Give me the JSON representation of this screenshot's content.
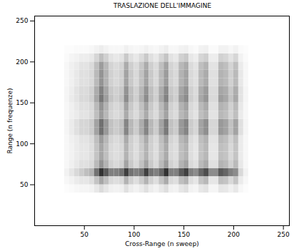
{
  "chart_data": {
    "type": "heatmap",
    "title": "TRASLAZIONE DELL'IMMAGINE",
    "x_label": "Cross-Range (n sweep)",
    "y_label": "Range (n frequenze)",
    "xlim": [
      0,
      256
    ],
    "ylim": [
      0,
      256
    ],
    "xticks": [
      50,
      100,
      150,
      200,
      250
    ],
    "yticks": [
      50,
      100,
      150,
      200,
      250
    ],
    "color": "#000000",
    "zlim": [
      0,
      100
    ],
    "xbins": [
      30,
      35,
      40,
      45,
      50,
      55,
      60,
      65,
      70,
      75,
      80,
      85,
      90,
      95,
      100,
      105,
      110,
      115,
      120,
      125,
      130,
      135,
      140,
      145,
      150,
      155,
      160,
      165,
      170,
      175,
      180,
      185,
      190,
      195,
      200,
      205,
      210,
      215
    ],
    "ybins": [
      40,
      50,
      60,
      70,
      80,
      90,
      100,
      110,
      120,
      130,
      140,
      150,
      160,
      170,
      180,
      190,
      200,
      210,
      220
    ],
    "values": [
      [
        1,
        2,
        3,
        4,
        4,
        5,
        9,
        14,
        10,
        6,
        5,
        6,
        12,
        7,
        5,
        8,
        12,
        7,
        5,
        9,
        13,
        6,
        5,
        10,
        12,
        5,
        4,
        9,
        11,
        4,
        4,
        10,
        9,
        6,
        9,
        3,
        1
      ],
      [
        3,
        5,
        8,
        10,
        10,
        13,
        23,
        35,
        25,
        15,
        13,
        15,
        30,
        18,
        13,
        20,
        30,
        18,
        13,
        23,
        33,
        15,
        13,
        25,
        30,
        13,
        10,
        23,
        28,
        10,
        10,
        25,
        23,
        15,
        23,
        8,
        3
      ],
      [
        5,
        10,
        15,
        20,
        25,
        30,
        55,
        80,
        65,
        50,
        50,
        55,
        75,
        55,
        50,
        55,
        75,
        55,
        50,
        60,
        80,
        50,
        50,
        65,
        75,
        50,
        45,
        60,
        70,
        45,
        45,
        65,
        60,
        50,
        45,
        15,
        5
      ],
      [
        3,
        6,
        9,
        12,
        12,
        15,
        27,
        42,
        30,
        18,
        15,
        18,
        36,
        21,
        15,
        24,
        36,
        21,
        15,
        27,
        39,
        18,
        15,
        30,
        36,
        15,
        12,
        27,
        33,
        12,
        12,
        30,
        27,
        18,
        27,
        9,
        3
      ],
      [
        3,
        5,
        8,
        10,
        10,
        13,
        23,
        35,
        25,
        15,
        13,
        15,
        30,
        18,
        13,
        20,
        30,
        18,
        13,
        23,
        33,
        15,
        13,
        25,
        30,
        13,
        10,
        23,
        28,
        10,
        10,
        25,
        23,
        15,
        23,
        8,
        3
      ],
      [
        3,
        5,
        8,
        10,
        10,
        13,
        23,
        35,
        25,
        15,
        13,
        15,
        30,
        18,
        13,
        20,
        30,
        18,
        13,
        23,
        33,
        15,
        13,
        25,
        30,
        13,
        10,
        23,
        28,
        10,
        10,
        25,
        23,
        15,
        23,
        8,
        3
      ],
      [
        3,
        6,
        8,
        11,
        11,
        14,
        25,
        39,
        28,
        17,
        14,
        17,
        33,
        19,
        14,
        22,
        33,
        19,
        14,
        25,
        36,
        17,
        14,
        28,
        33,
        14,
        11,
        25,
        30,
        11,
        11,
        28,
        25,
        17,
        25,
        8,
        3
      ],
      [
        4,
        8,
        12,
        16,
        16,
        20,
        36,
        56,
        40,
        24,
        20,
        24,
        48,
        28,
        20,
        32,
        48,
        28,
        20,
        36,
        52,
        24,
        20,
        40,
        48,
        20,
        16,
        36,
        44,
        16,
        16,
        40,
        36,
        24,
        36,
        12,
        4
      ],
      [
        4,
        8,
        12,
        16,
        16,
        20,
        36,
        56,
        40,
        24,
        20,
        24,
        48,
        28,
        20,
        32,
        48,
        28,
        20,
        36,
        52,
        24,
        20,
        40,
        48,
        20,
        16,
        36,
        44,
        16,
        16,
        40,
        36,
        24,
        36,
        12,
        4
      ],
      [
        3,
        6,
        8,
        11,
        11,
        14,
        25,
        39,
        28,
        17,
        14,
        17,
        33,
        19,
        14,
        22,
        33,
        19,
        14,
        25,
        36,
        17,
        14,
        28,
        33,
        14,
        11,
        25,
        30,
        11,
        11,
        28,
        25,
        17,
        25,
        8,
        3
      ],
      [
        3,
        6,
        9,
        12,
        12,
        15,
        27,
        42,
        30,
        18,
        15,
        18,
        36,
        21,
        15,
        24,
        36,
        21,
        15,
        27,
        39,
        18,
        15,
        30,
        36,
        15,
        12,
        27,
        33,
        12,
        12,
        30,
        27,
        18,
        27,
        9,
        3
      ],
      [
        4,
        8,
        11,
        15,
        15,
        19,
        34,
        53,
        38,
        23,
        19,
        23,
        45,
        26,
        19,
        30,
        45,
        26,
        19,
        34,
        49,
        23,
        19,
        38,
        45,
        19,
        15,
        34,
        41,
        15,
        15,
        38,
        34,
        23,
        34,
        11,
        4
      ],
      [
        4,
        7,
        11,
        14,
        14,
        18,
        32,
        49,
        35,
        21,
        18,
        21,
        42,
        25,
        18,
        28,
        42,
        25,
        18,
        32,
        46,
        21,
        18,
        35,
        42,
        18,
        14,
        32,
        39,
        14,
        14,
        35,
        32,
        21,
        32,
        11,
        4
      ],
      [
        3,
        6,
        9,
        12,
        12,
        15,
        27,
        42,
        30,
        18,
        15,
        18,
        36,
        21,
        15,
        24,
        36,
        21,
        15,
        27,
        39,
        18,
        15,
        30,
        36,
        15,
        12,
        27,
        33,
        12,
        12,
        30,
        27,
        18,
        27,
        9,
        3
      ],
      [
        3,
        6,
        9,
        12,
        12,
        15,
        27,
        42,
        30,
        18,
        15,
        18,
        36,
        21,
        15,
        24,
        36,
        21,
        15,
        27,
        39,
        18,
        15,
        30,
        36,
        15,
        12,
        27,
        33,
        12,
        12,
        30,
        27,
        18,
        27,
        9,
        3
      ],
      [
        3,
        6,
        8,
        11,
        11,
        14,
        25,
        39,
        28,
        17,
        14,
        17,
        33,
        19,
        14,
        22,
        33,
        19,
        14,
        25,
        36,
        17,
        14,
        28,
        33,
        14,
        11,
        25,
        30,
        11,
        11,
        28,
        25,
        17,
        25,
        8,
        3
      ],
      [
        2,
        4,
        5,
        7,
        7,
        9,
        16,
        25,
        18,
        11,
        9,
        11,
        21,
        12,
        9,
        14,
        21,
        12,
        9,
        16,
        23,
        11,
        9,
        18,
        21,
        9,
        7,
        16,
        19,
        7,
        7,
        18,
        16,
        11,
        16,
        5,
        2
      ],
      [
        1,
        1,
        2,
        2,
        2,
        3,
        5,
        7,
        5,
        3,
        3,
        3,
        6,
        4,
        3,
        4,
        6,
        4,
        3,
        5,
        7,
        3,
        3,
        5,
        6,
        3,
        2,
        5,
        6,
        2,
        2,
        5,
        5,
        3,
        5,
        2,
        1
      ]
    ]
  }
}
